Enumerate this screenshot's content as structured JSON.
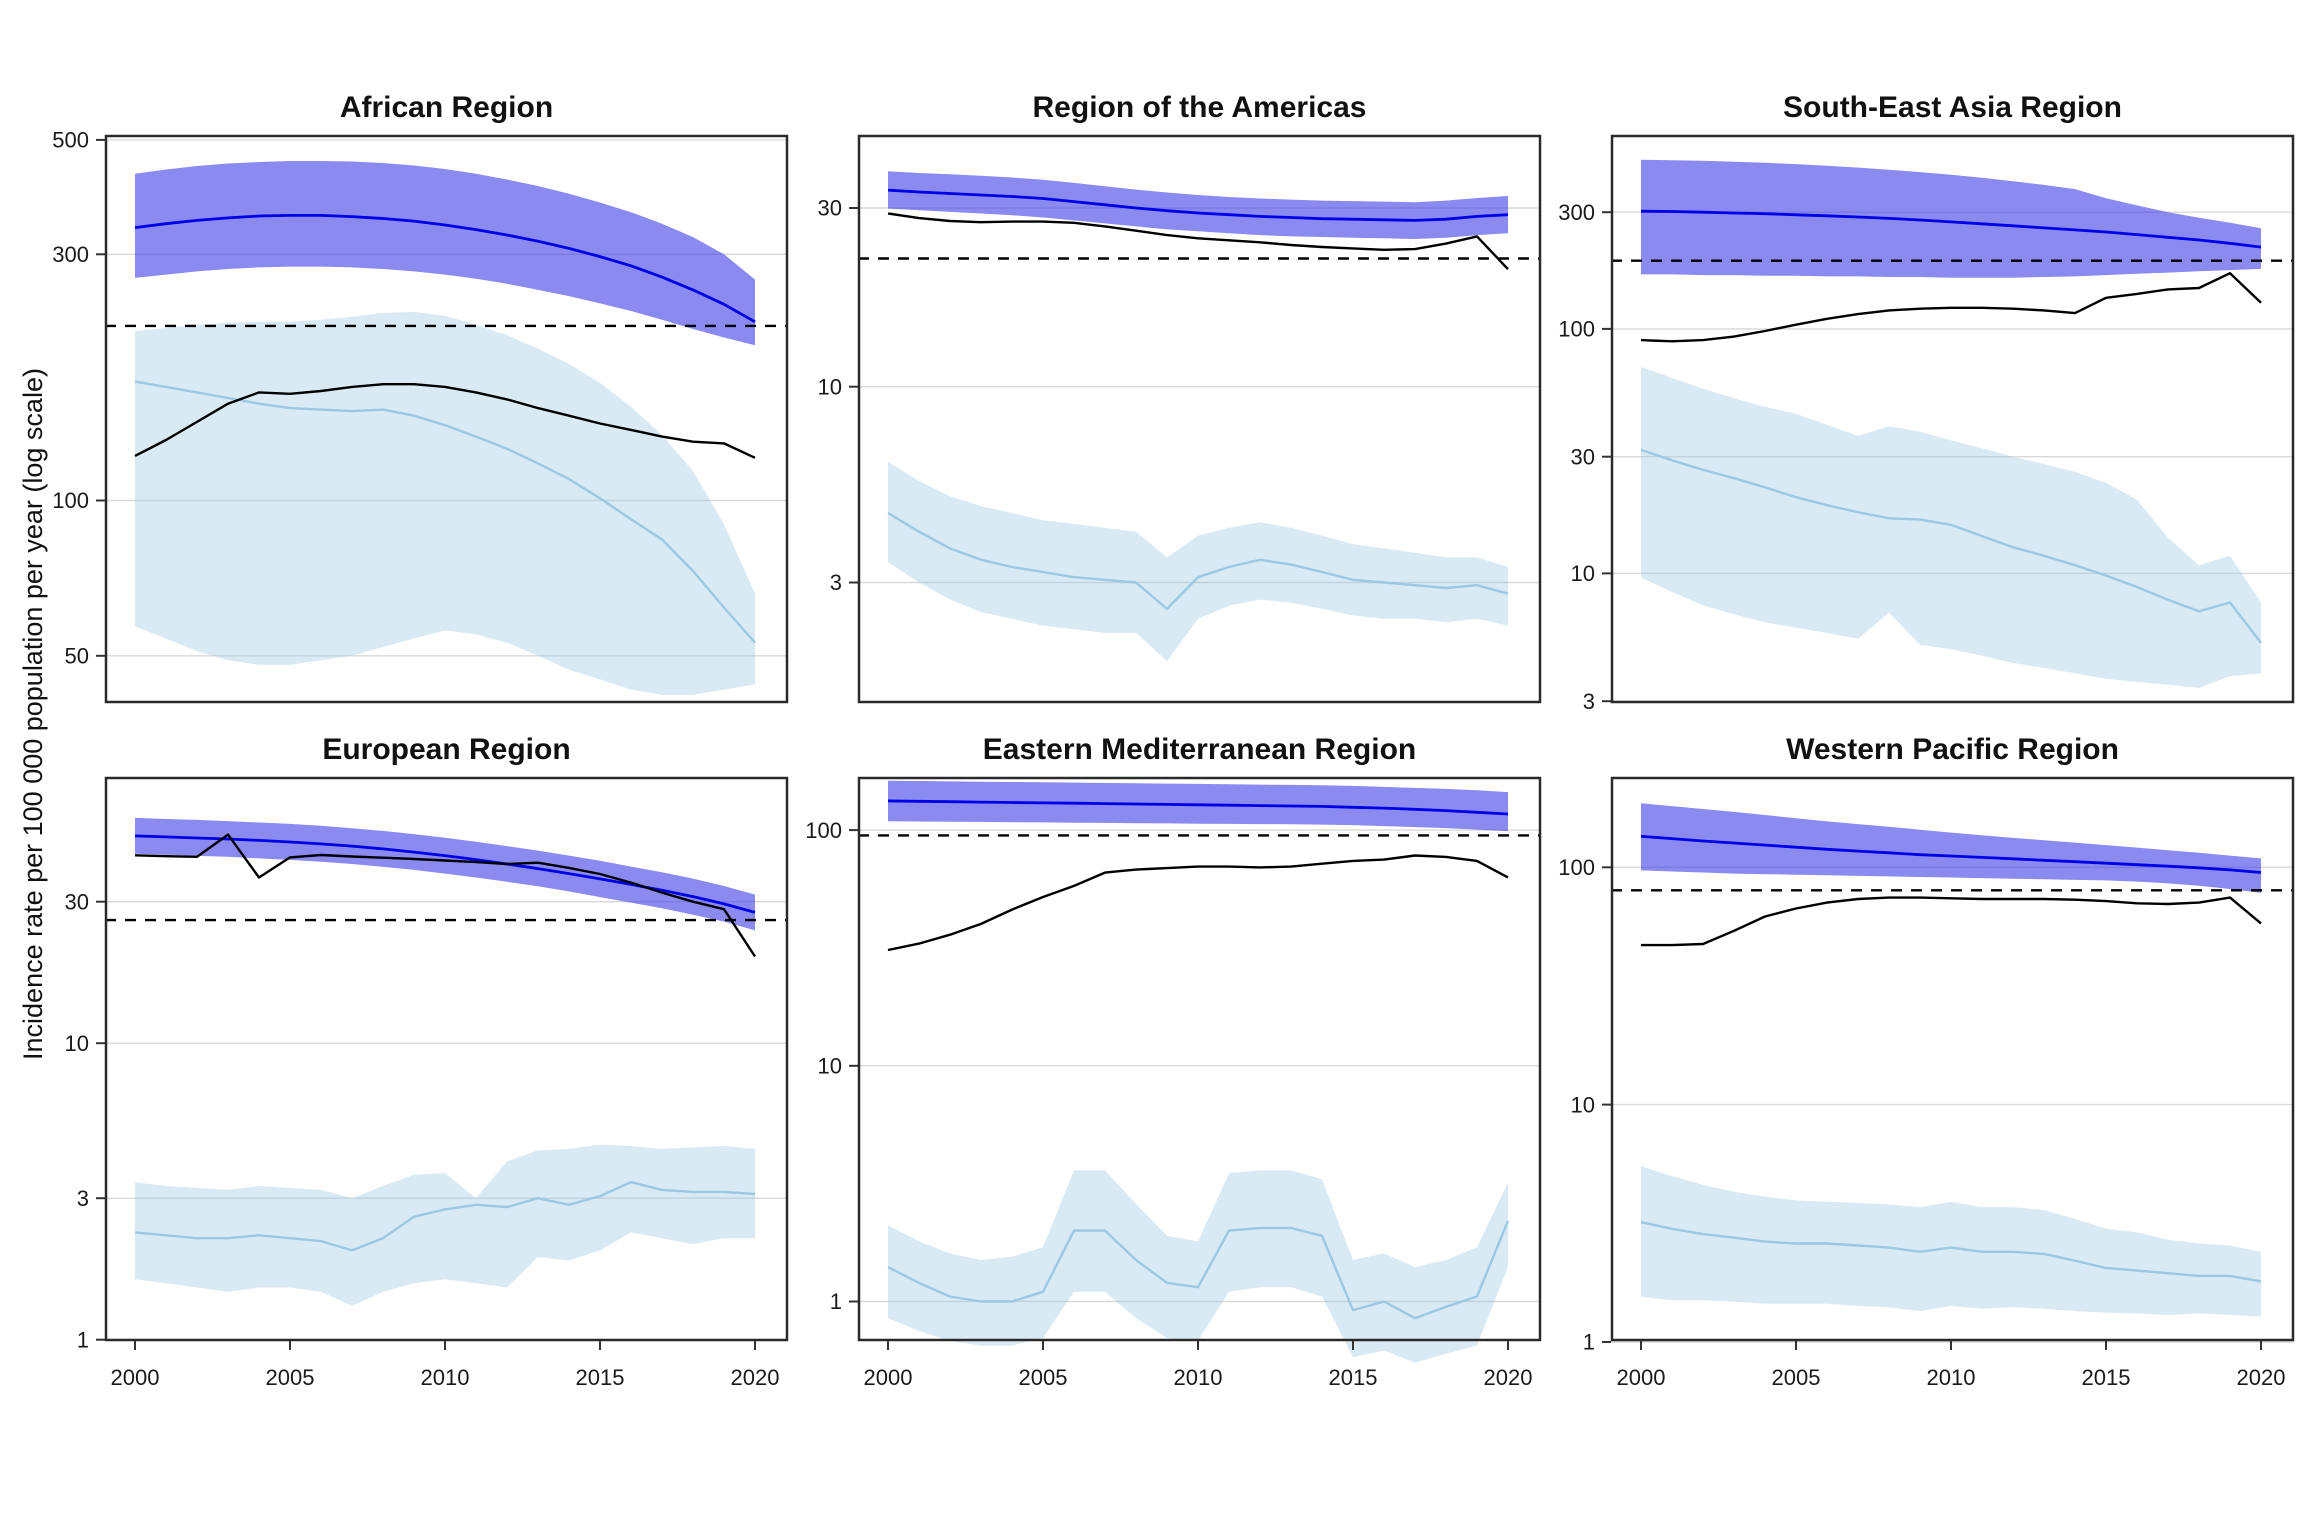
{
  "figure": {
    "y_axis_label": "Incidence rate per 100 000 population per year (log scale)",
    "x_tick_values": [
      2000,
      2005,
      2010,
      2015,
      2020
    ],
    "x_tick_labels": [
      "2000",
      "2005",
      "2010",
      "2015",
      "2020"
    ],
    "years": [
      2000,
      2001,
      2002,
      2003,
      2004,
      2005,
      2006,
      2007,
      2008,
      2009,
      2010,
      2011,
      2012,
      2013,
      2014,
      2015,
      2016,
      2017,
      2018,
      2019,
      2020
    ]
  },
  "colors": {
    "blue_line": "#0000e6",
    "blue_band": "rgba(60,60,230,0.6)",
    "light_blue_line": "#9bc8e3",
    "light_blue_band": "rgba(155,200,227,0.38)",
    "black_line": "#000000",
    "dashed_line": "#000000",
    "gridline": "#d9d9d9",
    "panel_border": "#2a2a2a",
    "background": "#ffffff"
  },
  "chart_data": [
    {
      "type": "line",
      "title": "African Region",
      "log_scale": true,
      "ylim_top": 511,
      "ylim_bottom": 40.5,
      "y_tick_values": [
        500,
        300,
        100,
        50
      ],
      "y_tick_labels": [
        "500",
        "300",
        "100",
        "50"
      ],
      "show_x_labels": false,
      "dashed_reference": 218,
      "blue_line": [
        338,
        344,
        349,
        353,
        356,
        357,
        357,
        355,
        352,
        348,
        342,
        335,
        327,
        318,
        308,
        297,
        285,
        271,
        256,
        240,
        222
      ],
      "blue_band_upper": [
        430,
        438,
        445,
        450,
        453,
        455,
        455,
        454,
        451,
        446,
        439,
        430,
        419,
        407,
        393,
        378,
        362,
        344,
        324,
        300,
        268
      ],
      "blue_band_lower": [
        270,
        274,
        278,
        281,
        283,
        284,
        284,
        283,
        281,
        278,
        274,
        269,
        263,
        256,
        249,
        241,
        233,
        224,
        215,
        207,
        200
      ],
      "black_line": [
        122,
        131,
        142,
        154,
        162,
        161,
        163,
        166,
        168,
        168,
        166,
        162,
        157,
        151,
        146,
        141,
        137,
        133,
        130,
        129,
        121
      ],
      "light_blue_line": [
        170,
        166,
        162,
        158,
        154,
        151,
        150,
        149,
        150,
        146,
        140,
        133,
        126,
        118,
        110,
        101,
        92,
        84,
        73,
        62,
        53
      ],
      "light_blue_band_upper": [
        213,
        216,
        219,
        221,
        222,
        222,
        224,
        227,
        231,
        232,
        228,
        219,
        209,
        197,
        184,
        169,
        152,
        134,
        114,
        90,
        66
      ],
      "light_blue_band_lower": [
        57,
        54,
        51,
        49,
        48,
        48,
        49,
        50,
        52,
        54,
        56,
        55,
        53,
        50,
        47,
        45,
        43,
        42,
        42,
        43,
        44
      ]
    },
    {
      "type": "line",
      "title": "Region of the Americas",
      "log_scale": true,
      "ylim_top": 47,
      "ylim_bottom": 1.43,
      "y_tick_values": [
        30,
        10,
        3
      ],
      "y_tick_labels": [
        "30",
        "10",
        "3"
      ],
      "show_x_labels": false,
      "dashed_reference": 22,
      "blue_line": [
        33.5,
        33.1,
        32.8,
        32.5,
        32.2,
        31.8,
        31.2,
        30.6,
        30.0,
        29.5,
        29.1,
        28.8,
        28.5,
        28.3,
        28.1,
        28.0,
        27.9,
        27.8,
        28.0,
        28.5,
        28.8
      ],
      "blue_band_upper": [
        37.6,
        37.2,
        36.9,
        36.6,
        36.2,
        35.7,
        35.0,
        34.3,
        33.6,
        33.0,
        32.5,
        32.1,
        31.8,
        31.6,
        31.4,
        31.3,
        31.2,
        31.1,
        31.4,
        31.9,
        32.3
      ],
      "blue_band_lower": [
        29.9,
        29.6,
        29.3,
        29.0,
        28.7,
        28.3,
        27.8,
        27.3,
        26.8,
        26.3,
        26.0,
        25.7,
        25.4,
        25.2,
        25.1,
        25.0,
        24.9,
        24.8,
        25.0,
        25.4,
        25.7
      ],
      "black_line": [
        29.0,
        28.2,
        27.7,
        27.5,
        27.6,
        27.6,
        27.4,
        26.8,
        26.1,
        25.4,
        24.9,
        24.6,
        24.3,
        23.9,
        23.6,
        23.4,
        23.2,
        23.3,
        24.1,
        25.2,
        20.6
      ],
      "light_blue_line": [
        4.6,
        4.1,
        3.7,
        3.45,
        3.3,
        3.2,
        3.1,
        3.05,
        3.0,
        2.55,
        3.1,
        3.3,
        3.45,
        3.35,
        3.2,
        3.05,
        3.0,
        2.95,
        2.9,
        2.95,
        2.8
      ],
      "light_blue_band_upper": [
        6.3,
        5.6,
        5.1,
        4.8,
        4.6,
        4.4,
        4.3,
        4.2,
        4.1,
        3.5,
        4.0,
        4.2,
        4.35,
        4.2,
        4.0,
        3.8,
        3.7,
        3.6,
        3.5,
        3.5,
        3.3
      ],
      "light_blue_band_lower": [
        3.4,
        3.0,
        2.7,
        2.5,
        2.4,
        2.3,
        2.25,
        2.2,
        2.2,
        1.85,
        2.4,
        2.6,
        2.7,
        2.65,
        2.55,
        2.45,
        2.4,
        2.4,
        2.35,
        2.4,
        2.3
      ]
    },
    {
      "type": "line",
      "title": "South-East Asia Region",
      "log_scale": true,
      "ylim_top": 621,
      "ylim_bottom": 2.95,
      "y_tick_values": [
        300,
        100,
        30,
        10,
        3
      ],
      "y_tick_labels": [
        "300",
        "100",
        "30",
        "10",
        "3"
      ],
      "show_x_labels": false,
      "dashed_reference": 190,
      "blue_line": [
        303,
        302,
        300,
        298,
        296,
        293,
        290,
        287,
        283,
        279,
        274,
        269,
        264,
        259,
        254,
        249,
        243,
        237,
        231,
        224,
        216
      ],
      "blue_band_upper": [
        492,
        490,
        487,
        483,
        478,
        472,
        465,
        457,
        448,
        438,
        427,
        415,
        402,
        388,
        373,
        342,
        320,
        300,
        285,
        272,
        258
      ],
      "blue_band_lower": [
        167,
        167,
        166,
        166,
        165,
        165,
        164,
        164,
        163,
        163,
        162,
        162,
        162,
        163,
        164,
        166,
        168,
        170,
        172,
        174,
        176
      ],
      "black_line": [
        90,
        89,
        90,
        93,
        98,
        104,
        110,
        115,
        119,
        121,
        122,
        122,
        121,
        119,
        116,
        134,
        139,
        145,
        147,
        169,
        128
      ],
      "light_blue_line": [
        32,
        29,
        26.5,
        24.5,
        22.5,
        20.5,
        19,
        17.8,
        16.8,
        16.6,
        15.8,
        14.2,
        12.8,
        11.8,
        10.8,
        9.8,
        8.8,
        7.8,
        7.0,
        7.6,
        5.2
      ],
      "light_blue_band_upper": [
        70,
        63,
        57,
        52,
        48,
        45,
        40.5,
        36.5,
        40,
        38,
        35,
        32.5,
        30,
        28,
        26,
        23.5,
        20,
        14,
        10.8,
        11.8,
        7.6
      ],
      "light_blue_band_lower": [
        9.6,
        8.4,
        7.4,
        6.8,
        6.3,
        6.0,
        5.7,
        5.4,
        6.9,
        5.1,
        4.9,
        4.6,
        4.3,
        4.1,
        3.9,
        3.7,
        3.6,
        3.5,
        3.4,
        3.8,
        3.9
      ]
    },
    {
      "type": "line",
      "title": "European Region",
      "log_scale": true,
      "ylim_top": 79,
      "ylim_bottom": 0.99,
      "y_tick_values": [
        30,
        10,
        3,
        1
      ],
      "y_tick_labels": [
        "30",
        "10",
        "3",
        "1"
      ],
      "show_x_labels": true,
      "dashed_reference": 26,
      "blue_line": [
        50,
        49.6,
        49.2,
        48.8,
        48.3,
        47.7,
        47,
        46.2,
        45.2,
        44.1,
        42.9,
        41.6,
        40.2,
        38.8,
        37.3,
        35.8,
        34.3,
        32.8,
        31.2,
        29.5,
        27.6
      ],
      "blue_band_upper": [
        57.5,
        57,
        56.6,
        56.1,
        55.5,
        54.9,
        54.1,
        53.1,
        52,
        50.7,
        49.3,
        47.8,
        46.2,
        44.6,
        42.9,
        41.2,
        39.4,
        37.7,
        35.9,
        33.9,
        31.7
      ],
      "blue_band_lower": [
        43.5,
        43.2,
        42.8,
        42.5,
        42,
        41.5,
        40.9,
        40.2,
        39.3,
        38.4,
        37.3,
        36.2,
        35,
        33.8,
        32.5,
        31.1,
        29.8,
        28.5,
        27.1,
        25.7,
        24
      ],
      "black_line": [
        43,
        42.7,
        42.5,
        50.5,
        36.2,
        42.3,
        43.1,
        42.6,
        42.2,
        41.8,
        41.3,
        40.8,
        40.2,
        40.6,
        39,
        37.2,
        34.8,
        32.2,
        30,
        28.3,
        19.6
      ],
      "light_blue_line": [
        2.3,
        2.25,
        2.2,
        2.2,
        2.25,
        2.2,
        2.15,
        2.0,
        2.2,
        2.6,
        2.75,
        2.85,
        2.8,
        3.0,
        2.85,
        3.05,
        3.4,
        3.2,
        3.15,
        3.15,
        3.1
      ],
      "light_blue_band_upper": [
        3.4,
        3.3,
        3.25,
        3.2,
        3.3,
        3.25,
        3.2,
        3.0,
        3.3,
        3.6,
        3.65,
        3.0,
        4.0,
        4.35,
        4.4,
        4.55,
        4.5,
        4.4,
        4.45,
        4.5,
        4.4
      ],
      "light_blue_band_lower": [
        1.6,
        1.55,
        1.5,
        1.45,
        1.5,
        1.5,
        1.45,
        1.3,
        1.45,
        1.55,
        1.6,
        1.55,
        1.5,
        1.9,
        1.85,
        2.0,
        2.3,
        2.2,
        2.1,
        2.2,
        2.2
      ]
    },
    {
      "type": "line",
      "title": "Eastern Mediterranean Region",
      "log_scale": true,
      "ylim_top": 168,
      "ylim_bottom": 0.68,
      "y_tick_values": [
        100,
        10,
        1
      ],
      "y_tick_labels": [
        "100",
        "10",
        "1"
      ],
      "show_x_labels": true,
      "dashed_reference": 95,
      "blue_line": [
        133,
        132.5,
        132,
        131.5,
        131,
        130.5,
        130,
        129.5,
        129,
        128.5,
        128,
        127.5,
        127,
        126.5,
        126,
        125,
        124,
        122.5,
        121,
        119,
        117
      ],
      "blue_band_upper": [
        162,
        161.5,
        161,
        160.5,
        160,
        159.5,
        159,
        158.5,
        158,
        157.5,
        157,
        156.5,
        156,
        155.5,
        155,
        154,
        152.5,
        151,
        149.5,
        147.5,
        145
      ],
      "blue_band_lower": [
        109,
        108.8,
        108.5,
        108.3,
        108,
        107.8,
        107.5,
        107.3,
        107,
        106.8,
        106.5,
        106.3,
        106,
        105.8,
        105.5,
        105,
        104,
        103,
        102,
        100.5,
        99
      ],
      "black_line": [
        31,
        33,
        36,
        40,
        46,
        52,
        58,
        66,
        68,
        69,
        70,
        70,
        69.5,
        70,
        72,
        74,
        75,
        78,
        77,
        74,
        63
      ],
      "light_blue_line": [
        1.4,
        1.2,
        1.05,
        1.0,
        1.0,
        1.1,
        2.0,
        2.0,
        1.5,
        1.2,
        1.15,
        2.0,
        2.05,
        2.05,
        1.9,
        0.92,
        1.0,
        0.85,
        0.95,
        1.05,
        2.2
      ],
      "light_blue_band_upper": [
        2.1,
        1.8,
        1.6,
        1.5,
        1.55,
        1.7,
        3.6,
        3.6,
        2.6,
        1.9,
        1.8,
        3.5,
        3.6,
        3.6,
        3.3,
        1.5,
        1.6,
        1.4,
        1.5,
        1.7,
        3.2
      ],
      "light_blue_band_lower": [
        0.85,
        0.75,
        0.68,
        0.65,
        0.65,
        0.7,
        1.1,
        1.1,
        0.85,
        0.7,
        0.68,
        1.1,
        1.15,
        1.15,
        1.05,
        0.58,
        0.62,
        0.55,
        0.6,
        0.65,
        1.4
      ]
    },
    {
      "type": "line",
      "title": "Western Pacific Region",
      "log_scale": true,
      "ylim_top": 240,
      "ylim_bottom": 1.01,
      "y_tick_values": [
        100,
        10,
        1
      ],
      "y_tick_labels": [
        "100",
        "10",
        "1"
      ],
      "show_x_labels": true,
      "dashed_reference": 80,
      "blue_line": [
        135,
        132,
        129,
        126.5,
        124,
        121.5,
        119,
        117,
        115,
        113,
        111.5,
        110,
        108.5,
        107,
        105.5,
        104,
        102.5,
        101,
        99.5,
        97.5,
        95
      ],
      "blue_band_upper": [
        186,
        181,
        176,
        171,
        166,
        161,
        156,
        152,
        148,
        144,
        140,
        136.5,
        133,
        130,
        127,
        124,
        121,
        118,
        115,
        112,
        109
      ],
      "blue_band_lower": [
        97,
        96,
        95,
        94,
        93.5,
        93,
        92.5,
        92,
        91.5,
        91,
        90.5,
        90,
        89.5,
        89,
        88.5,
        88,
        87,
        85.5,
        83.5,
        81,
        78
      ],
      "black_line": [
        47,
        47,
        47.5,
        54,
        62,
        67,
        71,
        73.5,
        74.5,
        74.5,
        74,
        73.5,
        73.5,
        73.5,
        73,
        72,
        70.5,
        70,
        71,
        74.5,
        58
      ],
      "light_blue_line": [
        3.2,
        3.0,
        2.85,
        2.75,
        2.65,
        2.6,
        2.6,
        2.55,
        2.5,
        2.4,
        2.5,
        2.4,
        2.4,
        2.35,
        2.2,
        2.05,
        2.0,
        1.95,
        1.9,
        1.9,
        1.8
      ],
      "light_blue_band_upper": [
        5.5,
        5.0,
        4.6,
        4.3,
        4.1,
        3.95,
        3.9,
        3.85,
        3.8,
        3.7,
        3.9,
        3.7,
        3.7,
        3.6,
        3.3,
        3.0,
        2.9,
        2.7,
        2.6,
        2.55,
        2.4
      ],
      "light_blue_band_lower": [
        1.55,
        1.5,
        1.5,
        1.48,
        1.45,
        1.45,
        1.45,
        1.42,
        1.4,
        1.35,
        1.42,
        1.38,
        1.4,
        1.38,
        1.35,
        1.33,
        1.32,
        1.3,
        1.32,
        1.3,
        1.28
      ]
    }
  ]
}
